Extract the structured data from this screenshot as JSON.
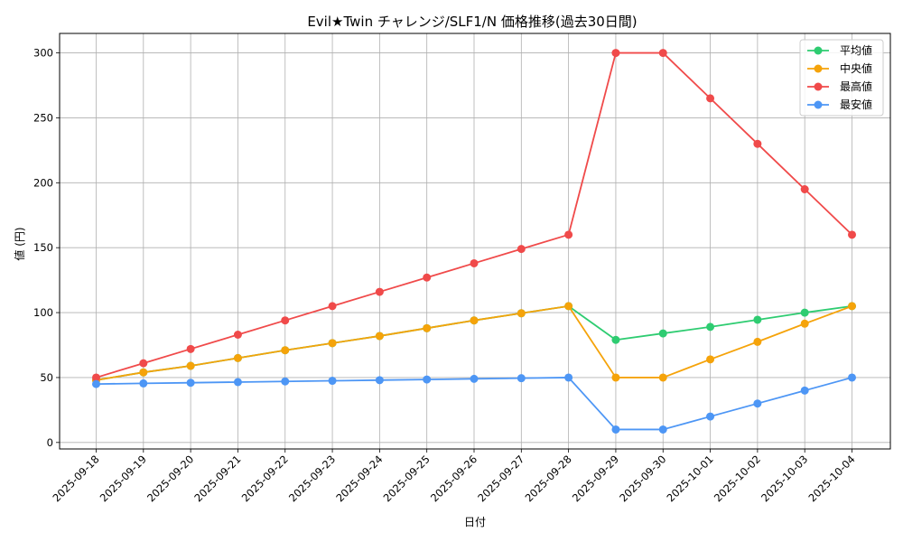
{
  "chart_data": {
    "type": "line",
    "title": "Evil★Twin チャレンジ/SLF1/N 価格推移(過去30日間)",
    "xlabel": "日付",
    "ylabel": "値 (円)",
    "ylim": [
      -5,
      315
    ],
    "yticks": [
      0,
      50,
      100,
      150,
      200,
      250,
      300
    ],
    "grid": true,
    "legend_position": "top-right",
    "categories": [
      "2025-09-18",
      "2025-09-19",
      "2025-09-20",
      "2025-09-21",
      "2025-09-22",
      "2025-09-23",
      "2025-09-24",
      "2025-09-25",
      "2025-09-26",
      "2025-09-27",
      "2025-09-28",
      "2025-09-29",
      "2025-09-30",
      "2025-10-01",
      "2025-10-02",
      "2025-10-03",
      "2025-10-04"
    ],
    "series": [
      {
        "name": "平均値",
        "color": "#2ecc71",
        "values": [
          48,
          54,
          59,
          65,
          71,
          76.5,
          82,
          88,
          94,
          99.5,
          105,
          79,
          84,
          89,
          94.5,
          100,
          105
        ]
      },
      {
        "name": "中央値",
        "color": "#f5a30a",
        "values": [
          48,
          54,
          59,
          65,
          71,
          76.5,
          82,
          88,
          94,
          99.5,
          105,
          50,
          50,
          64,
          77.5,
          91.5,
          105
        ]
      },
      {
        "name": "最高値",
        "color": "#f04a4a",
        "values": [
          50,
          61,
          72,
          83,
          94,
          105,
          116,
          127,
          138,
          149,
          160,
          300,
          300,
          265,
          230,
          195,
          160
        ]
      },
      {
        "name": "最安値",
        "color": "#4d96f5",
        "values": [
          45,
          45.5,
          46,
          46.5,
          47,
          47.5,
          48,
          48.5,
          49,
          49.5,
          50,
          10,
          10,
          20,
          30,
          40,
          50
        ]
      }
    ]
  }
}
